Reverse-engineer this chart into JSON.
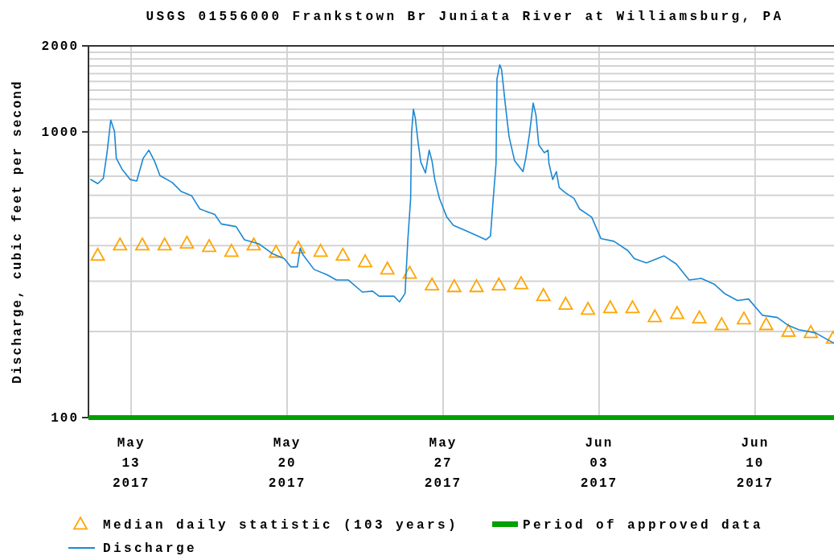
{
  "chart_data": {
    "type": "line",
    "title": "USGS 01556000 Frankstown Br Juniata River at Williamsburg, PA",
    "ylabel": "Discharge, cubic feet per second",
    "log": true,
    "grid": true,
    "legend": "bottom",
    "xlim": [
      "2017-05-11T02:00",
      "2017-06-13T13:00"
    ],
    "xticks": [
      {
        "value": "2017-05-13",
        "label": "May\n13\n2017"
      },
      {
        "value": "2017-05-20",
        "label": "May\n20\n2017"
      },
      {
        "value": "2017-05-27",
        "label": "May\n27\n2017"
      },
      {
        "value": "2017-06-03",
        "label": "Jun\n03\n2017"
      },
      {
        "value": "2017-06-10",
        "label": "Jun\n10\n2017"
      }
    ],
    "ylim": [
      100,
      2000
    ],
    "yticks": [
      100,
      {
        "value": 200,
        "label": null
      },
      {
        "value": 300,
        "label": null
      },
      {
        "value": 400,
        "label": null
      },
      {
        "value": 500,
        "label": null
      },
      {
        "value": 600,
        "label": null
      },
      {
        "value": 700,
        "label": null
      },
      {
        "value": 800,
        "label": null
      },
      {
        "value": 900,
        "label": null
      },
      1000,
      {
        "value": 1100,
        "label": null
      },
      {
        "value": 1200,
        "label": null
      },
      {
        "value": 1300,
        "label": null
      },
      {
        "value": 1400,
        "label": null
      },
      {
        "value": 1500,
        "label": null
      },
      {
        "value": 1600,
        "label": null
      },
      {
        "value": 1700,
        "label": null
      },
      {
        "value": 1800,
        "label": null
      },
      {
        "value": 1900,
        "label": null
      },
      2000
    ],
    "series": [
      {
        "name": "Median daily statistic (103 years)",
        "type": "scatter",
        "marker": "triangle",
        "color": "#ffa500",
        "x": [
          "2017-05-11T12:00",
          "2017-05-12T12:00",
          "2017-05-13T12:00",
          "2017-05-14T12:00",
          "2017-05-15T12:00",
          "2017-05-16T12:00",
          "2017-05-17T12:00",
          "2017-05-18T12:00",
          "2017-05-19T12:00",
          "2017-05-20T12:00",
          "2017-05-21T12:00",
          "2017-05-22T12:00",
          "2017-05-23T12:00",
          "2017-05-24T12:00",
          "2017-05-25T12:00",
          "2017-05-26T12:00",
          "2017-05-27T12:00",
          "2017-05-28T12:00",
          "2017-05-29T12:00",
          "2017-05-30T12:00",
          "2017-05-31T12:00",
          "2017-06-01T12:00",
          "2017-06-02T12:00",
          "2017-06-03T12:00",
          "2017-06-04T12:00",
          "2017-06-05T12:00",
          "2017-06-06T12:00",
          "2017-06-07T12:00",
          "2017-06-08T12:00",
          "2017-06-09T12:00",
          "2017-06-10T12:00",
          "2017-06-11T12:00",
          "2017-06-12T12:00",
          "2017-06-13T12:00"
        ],
        "values": [
          371,
          403,
          403,
          403,
          409,
          398,
          383,
          403,
          380,
          393,
          383,
          371,
          352,
          332,
          321,
          292,
          288,
          288,
          292,
          295,
          268,
          250,
          240,
          243,
          243,
          226,
          232,
          224,
          212,
          222,
          212,
          201,
          199,
          190
        ]
      },
      {
        "name": "Period of approved data",
        "type": "step",
        "marker": "none",
        "color": "#00a000",
        "x": [
          "2017-05-11T02:00",
          "2017-06-13T13:00"
        ],
        "values": [
          100,
          100
        ]
      },
      {
        "name": "Discharge",
        "marker": "none",
        "color": "#1b88d4",
        "x": [
          "2017-05-11T04:00",
          "2017-05-11T12:00",
          "2017-05-11T18:00",
          "2017-05-11T22:00",
          "2017-05-12T02:00",
          "2017-05-12T06:00",
          "2017-05-12T08:00",
          "2017-05-12T14:00",
          "2017-05-12T23:00",
          "2017-05-13T06:00",
          "2017-05-13T13:00",
          "2017-05-13T19:00",
          "2017-05-14T01:00",
          "2017-05-14T07:00",
          "2017-05-14T20:00",
          "2017-05-15T06:00",
          "2017-05-15T17:00",
          "2017-05-16T02:00",
          "2017-05-16T18:00",
          "2017-05-17T01:00",
          "2017-05-17T17:00",
          "2017-05-18T02:00",
          "2017-05-18T18:00",
          "2017-05-19T08:00",
          "2017-05-19T21:00",
          "2017-05-20T04:00",
          "2017-05-20T11:00",
          "2017-05-20T14:00",
          "2017-05-20T17:00",
          "2017-05-21T05:00",
          "2017-05-21T19:00",
          "2017-05-22T05:00",
          "2017-05-22T18:00",
          "2017-05-23T09:00",
          "2017-05-23T20:00",
          "2017-05-24T03:00",
          "2017-05-24T19:00",
          "2017-05-25T01:00",
          "2017-05-25T07:00",
          "2017-05-25T10:00",
          "2017-05-25T13:00",
          "2017-05-25T14:00",
          "2017-05-25T16:00",
          "2017-05-25T18:00",
          "2017-05-25T21:00",
          "2017-05-26T00:00",
          "2017-05-26T05:00",
          "2017-05-26T09:00",
          "2017-05-26T12:00",
          "2017-05-26T15:00",
          "2017-05-26T20:00",
          "2017-05-27T04:00",
          "2017-05-27T11:00",
          "2017-05-28T03:00",
          "2017-05-28T16:00",
          "2017-05-28T22:00",
          "2017-05-29T03:00",
          "2017-05-29T06:00",
          "2017-05-29T09:00",
          "2017-05-29T10:00",
          "2017-05-29T13:00",
          "2017-05-29T15:00",
          "2017-05-29T19:00",
          "2017-05-29T23:00",
          "2017-05-30T05:00",
          "2017-05-30T14:00",
          "2017-05-30T17:00",
          "2017-05-30T21:00",
          "2017-05-31T01:00",
          "2017-05-31T04:00",
          "2017-05-31T07:00",
          "2017-05-31T13:00",
          "2017-05-31T17:00",
          "2017-05-31T18:00",
          "2017-05-31T22:00",
          "2017-06-01T02:00",
          "2017-06-01T05:00",
          "2017-06-01T12:00",
          "2017-06-01T21:00",
          "2017-06-02T03:00",
          "2017-06-02T16:00",
          "2017-06-03T02:00",
          "2017-06-03T16:00",
          "2017-06-04T07:00",
          "2017-06-04T14:00",
          "2017-06-05T03:00",
          "2017-06-05T22:00",
          "2017-06-06T11:00",
          "2017-06-07T01:00",
          "2017-06-07T14:00",
          "2017-06-08T04:00",
          "2017-06-08T15:00",
          "2017-06-09T05:00",
          "2017-06-09T17:00",
          "2017-06-10T08:00",
          "2017-06-11T00:00",
          "2017-06-11T12:00",
          "2017-06-11T23:00",
          "2017-06-12T17:00",
          "2017-06-13T13:00"
        ],
        "values": [
          683,
          659,
          688,
          845,
          1100,
          1005,
          809,
          742,
          681,
          673,
          809,
          863,
          792,
          703,
          666,
          618,
          598,
          537,
          514,
          476,
          466,
          419,
          405,
          375,
          360,
          337,
          337,
          392,
          372,
          330,
          316,
          303,
          303,
          275,
          277,
          266,
          266,
          254,
          272,
          419,
          585,
          993,
          1199,
          1119,
          921,
          783,
          718,
          863,
          792,
          681,
          585,
          503,
          471,
          447,
          428,
          419,
          432,
          585,
          775,
          1532,
          1717,
          1651,
          1247,
          962,
          792,
          726,
          809,
          983,
          1261,
          1144,
          901,
          845,
          863,
          775,
          681,
          726,
          638,
          611,
          585,
          537,
          503,
          423,
          414,
          384,
          360,
          348,
          368,
          345,
          303,
          307,
          293,
          272,
          257,
          260,
          228,
          224,
          210,
          203,
          198,
          182
        ]
      }
    ]
  }
}
